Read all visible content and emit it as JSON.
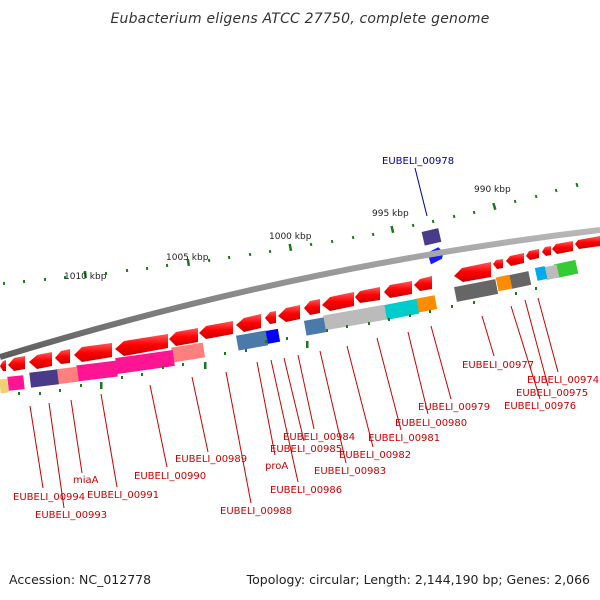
{
  "title": "Eubacterium eligens ATCC 27750, complete genome",
  "accession": "Accession: NC_012778",
  "summary": "Topology: circular; Length: 2,144,190 bp; Genes: 2,066",
  "colors": {
    "backbone": "#8a8a8a",
    "tick": "#1a7a1a",
    "gene_label": "#cc0000",
    "highlight_label": "#0000aa",
    "gene_red": "#ff0000"
  },
  "scale_ticks": [
    "990 kbp",
    "995 kbp",
    "1000 kbp",
    "1005 kbp",
    "1010 kbp"
  ],
  "gene_labels": [
    "EUBELI_00978",
    "EUBELI_00977",
    "EUBELI_00974",
    "EUBELI_00975",
    "EUBELI_00976",
    "EUBELI_00979",
    "EUBELI_00980",
    "EUBELI_00981",
    "EUBELI_00982",
    "EUBELI_00983",
    "EUBELI_00984",
    "EUBELI_00985",
    "EUBELI_00986",
    "proA",
    "EUBELI_00988",
    "EUBELI_00989",
    "EUBELI_00990",
    "EUBELI_00991",
    "miaA",
    "EUBELI_00993",
    "EUBELI_00994"
  ]
}
